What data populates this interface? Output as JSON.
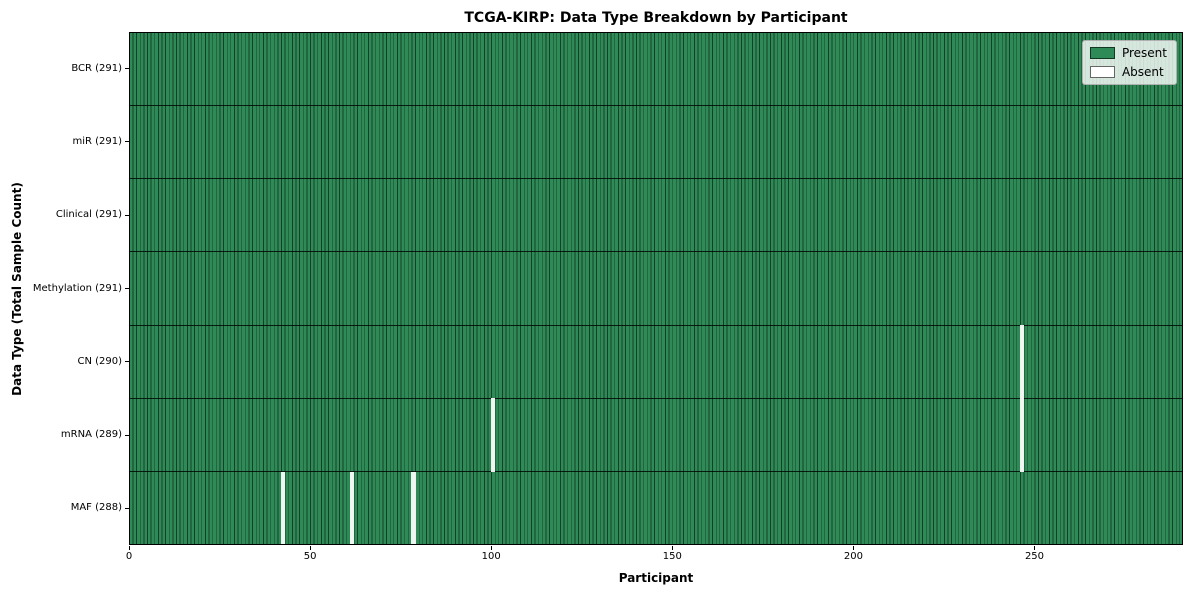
{
  "chart_data": {
    "type": "heatmap",
    "title": "TCGA-KIRP: Data Type Breakdown by Participant",
    "xlabel": "Participant",
    "ylabel": "Data Type (Total Sample Count)",
    "x_ticks": [
      0,
      50,
      100,
      150,
      200,
      250
    ],
    "xlim": [
      0,
      291
    ],
    "n_participants": 291,
    "categories": [
      "BCR (291)",
      "miR (291)",
      "Clinical (291)",
      "Methylation (291)",
      "CN (290)",
      "mRNA (289)",
      "MAF (288)"
    ],
    "rows": [
      {
        "label": "BCR (291)",
        "data_type": "BCR",
        "present_count": 291,
        "absent_participant_indices": []
      },
      {
        "label": "miR (291)",
        "data_type": "miR",
        "present_count": 291,
        "absent_participant_indices": []
      },
      {
        "label": "Clinical (291)",
        "data_type": "Clinical",
        "present_count": 291,
        "absent_participant_indices": []
      },
      {
        "label": "Methylation (291)",
        "data_type": "Methylation",
        "present_count": 291,
        "absent_participant_indices": []
      },
      {
        "label": "CN (290)",
        "data_type": "CN",
        "present_count": 290,
        "absent_participant_indices": [
          246
        ]
      },
      {
        "label": "mRNA (289)",
        "data_type": "mRNA",
        "present_count": 289,
        "absent_participant_indices": [
          100,
          246
        ]
      },
      {
        "label": "MAF (288)",
        "data_type": "MAF",
        "present_count": 288,
        "absent_participant_indices": [
          42,
          61,
          78
        ]
      }
    ],
    "legend": {
      "position": "upper-right",
      "items": [
        {
          "label": "Present",
          "color": "#2e8b57"
        },
        {
          "label": "Absent",
          "color": "#ffffff"
        }
      ]
    },
    "grid": "row-separators-only",
    "colors": {
      "present": "#2e8b57",
      "absent": "#ffffff",
      "bar_edge": "#1b4a32",
      "row_separator": "#1a1a1a",
      "frame": "#000000",
      "background": "#ffffff"
    }
  }
}
